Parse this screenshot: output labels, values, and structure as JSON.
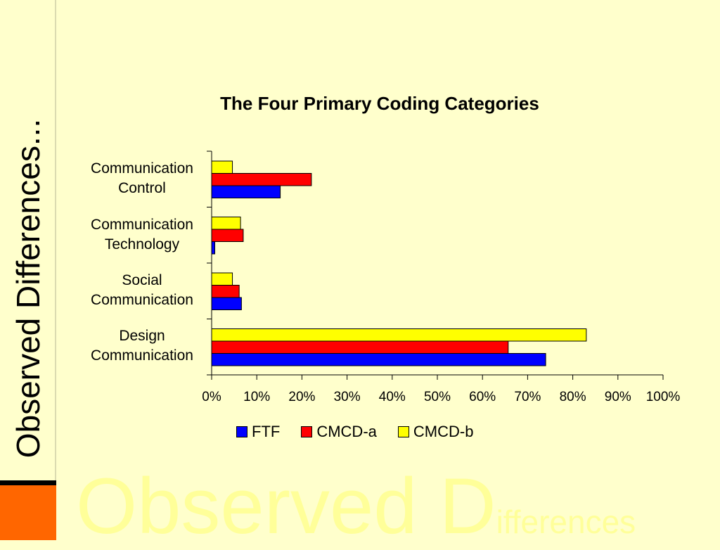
{
  "slide": {
    "side_title": "Observed Differences...",
    "watermark_big": "Observed D",
    "watermark_small": "ifferences"
  },
  "chart_data": {
    "type": "bar",
    "orientation": "horizontal",
    "title": "The Four Primary Coding Categories",
    "categories": [
      "Communication Control",
      "Communication Technology",
      "Social Communication",
      "Design Communication"
    ],
    "category_lines": [
      [
        "Communication",
        "Control"
      ],
      [
        "Communication",
        "Technology"
      ],
      [
        "Social",
        "Communication"
      ],
      [
        "Design",
        "Communication"
      ]
    ],
    "series": [
      {
        "name": "FTF",
        "color": "#0000FF",
        "values": [
          15.2,
          0.7,
          6.6,
          74.0
        ]
      },
      {
        "name": "CMCD-a",
        "color": "#FF0000",
        "values": [
          22.1,
          7.0,
          6.1,
          65.7
        ]
      },
      {
        "name": "CMCD-b",
        "color": "#FFFF00",
        "values": [
          4.6,
          6.4,
          4.6,
          83.0
        ]
      }
    ],
    "x_ticks": [
      "0%",
      "10%",
      "20%",
      "30%",
      "40%",
      "50%",
      "60%",
      "70%",
      "80%",
      "90%",
      "100%"
    ],
    "xlim": [
      0,
      100
    ],
    "xlabel": "",
    "ylabel": "",
    "grid": false,
    "legend_position": "bottom"
  }
}
